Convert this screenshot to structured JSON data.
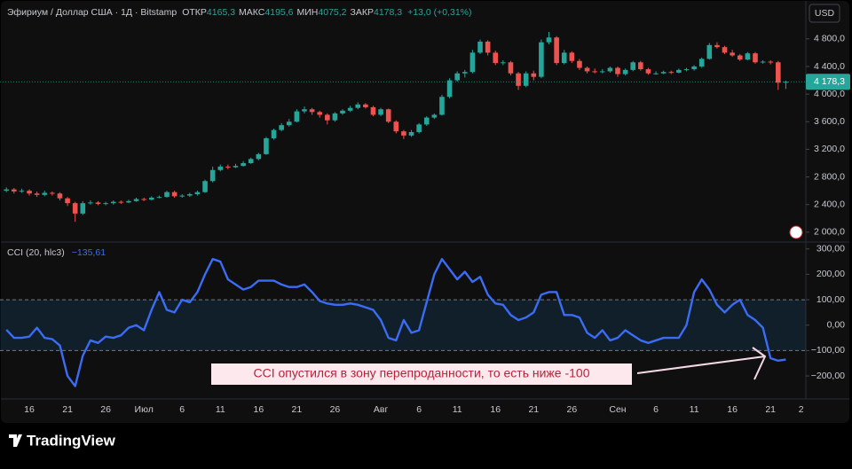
{
  "chart_data": [
    {
      "type": "candlestick",
      "up_color": "#26a69a",
      "down_color": "#ef5350",
      "categories": [
        null,
        null,
        null,
        "16",
        null,
        null,
        null,
        null,
        "21",
        null,
        null,
        null,
        null,
        "26",
        null,
        null,
        null,
        null,
        "Июл",
        null,
        null,
        null,
        null,
        "6",
        null,
        null,
        null,
        null,
        "11",
        null,
        null,
        null,
        null,
        "16",
        null,
        null,
        null,
        null,
        "21",
        null,
        null,
        null,
        null,
        "26",
        null,
        null,
        null,
        null,
        null,
        "Авг",
        null,
        null,
        null,
        null,
        "6",
        null,
        null,
        null,
        null,
        "11",
        null,
        null,
        null,
        null,
        "16",
        null,
        null,
        null,
        null,
        "21",
        null,
        null,
        null,
        null,
        "26",
        null,
        null,
        null,
        null,
        null,
        "Сен",
        null,
        null,
        null,
        null,
        "6",
        null,
        null,
        null,
        null,
        "11",
        null,
        null,
        null,
        null,
        "16",
        null,
        null,
        null,
        null,
        "21",
        null,
        null,
        null,
        "2"
      ],
      "ohlc": [
        [
          2600,
          2650,
          2580,
          2620
        ],
        [
          2620,
          2640,
          2560,
          2590
        ],
        [
          2590,
          2630,
          2570,
          2600
        ],
        [
          2600,
          2620,
          2530,
          2560
        ],
        [
          2560,
          2590,
          2510,
          2540
        ],
        [
          2540,
          2600,
          2520,
          2570
        ],
        [
          2570,
          2590,
          2530,
          2560
        ],
        [
          2560,
          2580,
          2460,
          2490
        ],
        [
          2490,
          2510,
          2380,
          2420
        ],
        [
          2420,
          2440,
          2150,
          2270
        ],
        [
          2270,
          2450,
          2250,
          2420
        ],
        [
          2420,
          2460,
          2400,
          2430
        ],
        [
          2430,
          2450,
          2390,
          2410
        ],
        [
          2410,
          2440,
          2390,
          2420
        ],
        [
          2420,
          2460,
          2400,
          2440
        ],
        [
          2440,
          2460,
          2410,
          2430
        ],
        [
          2430,
          2470,
          2420,
          2450
        ],
        [
          2450,
          2500,
          2440,
          2480
        ],
        [
          2480,
          2500,
          2450,
          2470
        ],
        [
          2470,
          2520,
          2460,
          2500
        ],
        [
          2500,
          2530,
          2490,
          2510
        ],
        [
          2510,
          2600,
          2500,
          2580
        ],
        [
          2580,
          2600,
          2500,
          2520
        ],
        [
          2520,
          2550,
          2500,
          2530
        ],
        [
          2530,
          2570,
          2510,
          2550
        ],
        [
          2550,
          2600,
          2530,
          2580
        ],
        [
          2580,
          2760,
          2570,
          2740
        ],
        [
          2740,
          2950,
          2720,
          2900
        ],
        [
          2900,
          2980,
          2880,
          2950
        ],
        [
          2950,
          2980,
          2910,
          2940
        ],
        [
          2940,
          2990,
          2930,
          2960
        ],
        [
          2960,
          3030,
          2950,
          3000
        ],
        [
          3000,
          3080,
          2990,
          3060
        ],
        [
          3060,
          3150,
          3040,
          3130
        ],
        [
          3130,
          3380,
          3120,
          3360
        ],
        [
          3360,
          3500,
          3340,
          3480
        ],
        [
          3480,
          3580,
          3460,
          3550
        ],
        [
          3550,
          3640,
          3530,
          3600
        ],
        [
          3600,
          3780,
          3590,
          3750
        ],
        [
          3750,
          3820,
          3720,
          3780
        ],
        [
          3780,
          3800,
          3700,
          3740
        ],
        [
          3740,
          3760,
          3660,
          3700
        ],
        [
          3700,
          3720,
          3560,
          3620
        ],
        [
          3620,
          3740,
          3600,
          3720
        ],
        [
          3720,
          3780,
          3700,
          3760
        ],
        [
          3760,
          3830,
          3740,
          3800
        ],
        [
          3800,
          3880,
          3780,
          3850
        ],
        [
          3850,
          3870,
          3790,
          3810
        ],
        [
          3810,
          3830,
          3680,
          3700
        ],
        [
          3700,
          3800,
          3680,
          3780
        ],
        [
          3780,
          3790,
          3580,
          3600
        ],
        [
          3600,
          3620,
          3430,
          3460
        ],
        [
          3460,
          3480,
          3350,
          3400
        ],
        [
          3400,
          3480,
          3380,
          3450
        ],
        [
          3450,
          3580,
          3430,
          3560
        ],
        [
          3560,
          3680,
          3540,
          3660
        ],
        [
          3660,
          3720,
          3640,
          3700
        ],
        [
          3700,
          3990,
          3690,
          3960
        ],
        [
          3960,
          4230,
          3940,
          4200
        ],
        [
          4200,
          4330,
          4180,
          4300
        ],
        [
          4300,
          4350,
          4240,
          4320
        ],
        [
          4320,
          4640,
          4300,
          4600
        ],
        [
          4600,
          4790,
          4580,
          4760
        ],
        [
          4760,
          4780,
          4560,
          4600
        ],
        [
          4600,
          4630,
          4420,
          4450
        ],
        [
          4450,
          4490,
          4420,
          4460
        ],
        [
          4460,
          4480,
          4270,
          4300
        ],
        [
          4300,
          4320,
          4060,
          4120
        ],
        [
          4120,
          4330,
          4100,
          4300
        ],
        [
          4300,
          4340,
          4200,
          4250
        ],
        [
          4250,
          4790,
          4230,
          4750
        ],
        [
          4750,
          4900,
          4720,
          4820
        ],
        [
          4820,
          4840,
          4420,
          4450
        ],
        [
          4450,
          4640,
          4430,
          4600
        ],
        [
          4600,
          4620,
          4450,
          4480
        ],
        [
          4480,
          4510,
          4350,
          4380
        ],
        [
          4380,
          4400,
          4300,
          4330
        ],
        [
          4330,
          4370,
          4300,
          4320
        ],
        [
          4320,
          4360,
          4300,
          4330
        ],
        [
          4330,
          4400,
          4310,
          4380
        ],
        [
          4380,
          4400,
          4250,
          4290
        ],
        [
          4290,
          4370,
          4270,
          4350
        ],
        [
          4350,
          4480,
          4330,
          4460
        ],
        [
          4460,
          4480,
          4340,
          4360
        ],
        [
          4360,
          4380,
          4280,
          4300
        ],
        [
          4300,
          4330,
          4280,
          4300
        ],
        [
          4300,
          4340,
          4290,
          4320
        ],
        [
          4320,
          4340,
          4290,
          4310
        ],
        [
          4310,
          4370,
          4300,
          4350
        ],
        [
          4350,
          4380,
          4330,
          4360
        ],
        [
          4360,
          4420,
          4340,
          4400
        ],
        [
          4400,
          4530,
          4380,
          4510
        ],
        [
          4510,
          4740,
          4500,
          4710
        ],
        [
          4710,
          4750,
          4660,
          4680
        ],
        [
          4680,
          4700,
          4580,
          4600
        ],
        [
          4600,
          4640,
          4540,
          4560
        ],
        [
          4560,
          4580,
          4480,
          4500
        ],
        [
          4500,
          4610,
          4490,
          4590
        ],
        [
          4590,
          4610,
          4440,
          4460
        ],
        [
          4460,
          4490,
          4440,
          4470
        ],
        [
          4470,
          4490,
          4430,
          4460
        ],
        [
          4460,
          4480,
          4060,
          4165
        ],
        [
          4165.3,
          4195.6,
          4075.2,
          4178.3
        ],
        null,
        null
      ],
      "ylim": [
        1870,
        5260
      ],
      "yticks": [
        {
          "value": 2000,
          "label": "2 000,0"
        },
        {
          "value": 2400,
          "label": "2 400,0"
        },
        {
          "value": 2800,
          "label": "2 800,0"
        },
        {
          "value": 3200,
          "label": "3 200,0"
        },
        {
          "value": 3600,
          "label": "3 600,0"
        },
        {
          "value": 4000,
          "label": "4 000,0"
        },
        {
          "value": 4400,
          "label": "4 400,0"
        },
        {
          "value": 4800,
          "label": "4 800,0"
        }
      ],
      "last_price": {
        "value": 4178.3,
        "label": "4 178,3"
      }
    },
    {
      "type": "line",
      "name": "CCI (20, hlc3)",
      "color": "#3a6cf4",
      "last_value_label": "−135,61",
      "values": [
        -18,
        -50,
        -50,
        -45,
        -10,
        -50,
        -55,
        -80,
        -200,
        -240,
        -120,
        -60,
        -70,
        -45,
        -50,
        -40,
        -10,
        0,
        -20,
        60,
        130,
        60,
        50,
        100,
        90,
        130,
        200,
        260,
        250,
        180,
        160,
        140,
        150,
        175,
        175,
        175,
        160,
        150,
        150,
        160,
        130,
        95,
        85,
        80,
        80,
        85,
        80,
        70,
        60,
        20,
        -50,
        -60,
        20,
        -30,
        -20,
        90,
        200,
        260,
        220,
        180,
        210,
        170,
        190,
        120,
        85,
        80,
        40,
        20,
        30,
        50,
        120,
        130,
        130,
        40,
        40,
        30,
        -30,
        -50,
        -20,
        -60,
        -50,
        -20,
        -40,
        -60,
        -70,
        -60,
        -50,
        -50,
        -50,
        0,
        130,
        180,
        140,
        80,
        50,
        80,
        100,
        40,
        20,
        -10,
        -130,
        -140,
        -135.61,
        null,
        null
      ],
      "band": [
        -100,
        100
      ],
      "ylim": [
        -280,
        320
      ],
      "yticks": [
        {
          "value": 300,
          "label": "300,00"
        },
        {
          "value": 200,
          "label": "200,00"
        },
        {
          "value": 100,
          "label": "100,00"
        },
        {
          "value": 0,
          "label": "0,00"
        },
        {
          "value": -100,
          "label": "−100,00"
        },
        {
          "value": -200,
          "label": "−200,00"
        }
      ]
    }
  ],
  "ui": {
    "symbol": "Эфириум / Доллар США · 1Д · Bitstamp",
    "o_key": "ОТКР",
    "o_val": "4165,3",
    "h_key": "МАКС",
    "h_val": "4195,6",
    "l_key": "МИН",
    "l_val": "4075,2",
    "c_key": "ЗАКР",
    "c_val": "4178,3",
    "change": "+13,0 (+0,31%)",
    "currency": "USD",
    "annotation": "CCI опустился в зону перепроданности, то есть ниже -100",
    "brand": "TradingView"
  }
}
